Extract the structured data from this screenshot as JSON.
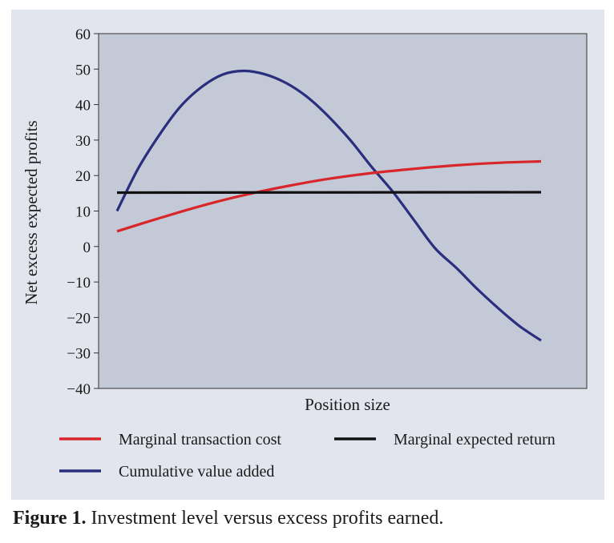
{
  "chart_data": {
    "type": "line",
    "title": "",
    "xlabel": "Position size",
    "ylabel": "Net excess expected profits",
    "ylim": [
      -40,
      60
    ],
    "yticks": [
      60,
      50,
      40,
      30,
      20,
      10,
      0,
      -10,
      -20,
      -30,
      -40
    ],
    "ytick_labels": [
      "60",
      "50",
      "40",
      "30",
      "20",
      "10",
      "0",
      "−10",
      "−20",
      "−30",
      "−40"
    ],
    "xlim": [
      0,
      100
    ],
    "x_ticks_shown": false,
    "grid": false,
    "legend_position": "bottom",
    "series": [
      {
        "name": "Marginal transaction cost",
        "color": "#d9262b",
        "x": [
          0,
          10,
          20,
          30,
          40,
          50,
          60,
          70,
          80,
          90,
          100
        ],
        "y": [
          4.3,
          8.0,
          11.5,
          14.5,
          17.0,
          19.1,
          20.7,
          21.9,
          22.9,
          23.6,
          24.0
        ]
      },
      {
        "name": "Marginal expected return",
        "color": "#111111",
        "x": [
          0,
          100
        ],
        "y": [
          15.2,
          15.3
        ]
      },
      {
        "name": "Cumulative value added",
        "color": "#2a2f7d",
        "x": [
          0,
          5,
          10,
          15,
          20,
          25,
          30,
          35,
          40,
          45,
          50,
          55,
          60,
          65,
          70,
          75,
          80,
          85,
          90,
          95,
          100
        ],
        "y": [
          10.0,
          22.0,
          31.5,
          39.5,
          45.0,
          48.5,
          49.5,
          48.5,
          46.0,
          42.0,
          36.5,
          30.0,
          22.5,
          15.5,
          7.5,
          -0.5,
          -6.0,
          -12.0,
          -17.5,
          -22.5,
          -26.5
        ]
      }
    ]
  },
  "legend": {
    "items": [
      {
        "label": "Marginal transaction cost",
        "color": "#d9262b"
      },
      {
        "label": "Marginal expected return",
        "color": "#111111"
      },
      {
        "label": "Cumulative value added",
        "color": "#2a2f7d"
      }
    ]
  },
  "caption": {
    "label": "Figure 1.",
    "text": "Investment level versus excess profits earned."
  },
  "colors": {
    "panel_background": "#e2e5ee",
    "plot_background": "#c3c9d6"
  }
}
